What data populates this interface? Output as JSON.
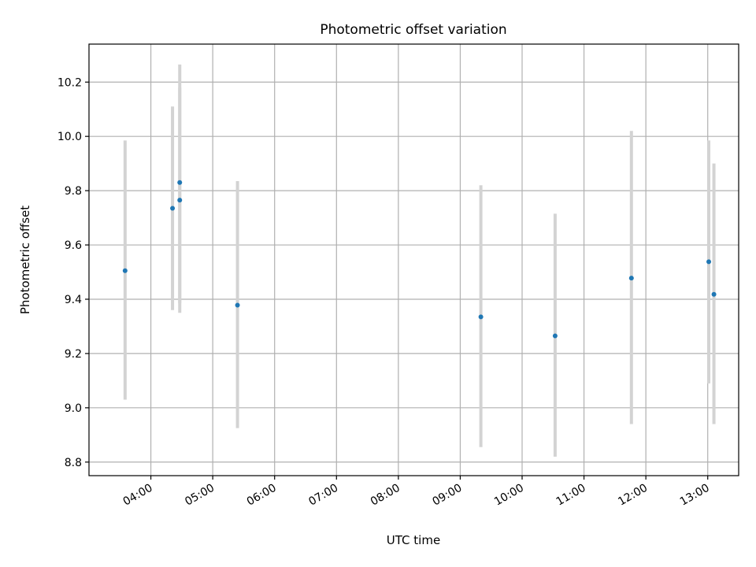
{
  "chart_data": {
    "type": "scatter",
    "title": "Photometric offset variation",
    "xlabel": "UTC time",
    "ylabel": "Photometric offset",
    "x_unit": "UTC time of day (HH:MM)",
    "xlim": [
      "03:00",
      "13:30"
    ],
    "ylim": [
      8.75,
      10.34
    ],
    "x_ticks": [
      "04:00",
      "05:00",
      "06:00",
      "07:00",
      "08:00",
      "09:00",
      "10:00",
      "11:00",
      "12:00",
      "13:00"
    ],
    "y_ticks": [
      8.8,
      9.0,
      9.2,
      9.4,
      9.6,
      9.8,
      10.0,
      10.2
    ],
    "y_tick_labels": [
      "8.8",
      "9.0",
      "9.2",
      "9.4",
      "9.6",
      "9.8",
      "10.0",
      "10.2"
    ],
    "grid": true,
    "series": [
      {
        "points": [
          {
            "x": "03:35",
            "y": 9.505,
            "err_low": 9.03,
            "err_high": 9.985
          },
          {
            "x": "04:21",
            "y": 9.735,
            "err_low": 9.36,
            "err_high": 10.11
          },
          {
            "x": "04:28",
            "y": 9.83,
            "err_low": 9.385,
            "err_high": 10.265
          },
          {
            "x": "04:28",
            "y": 9.765,
            "err_low": 9.35,
            "err_high": 10.18
          },
          {
            "x": "05:24",
            "y": 9.378,
            "err_low": 8.925,
            "err_high": 9.835
          },
          {
            "x": "09:20",
            "y": 9.335,
            "err_low": 8.855,
            "err_high": 9.82
          },
          {
            "x": "10:32",
            "y": 9.265,
            "err_low": 8.82,
            "err_high": 9.715
          },
          {
            "x": "11:46",
            "y": 9.478,
            "err_low": 8.94,
            "err_high": 10.02
          },
          {
            "x": "13:01",
            "y": 9.538,
            "err_low": 9.09,
            "err_high": 9.985
          },
          {
            "x": "13:06",
            "y": 9.418,
            "err_low": 8.94,
            "err_high": 9.9
          }
        ]
      }
    ],
    "colors": {
      "marker": "#1f77b4",
      "errorbar": "#d3d3d3",
      "grid": "#b0b0b0"
    }
  }
}
